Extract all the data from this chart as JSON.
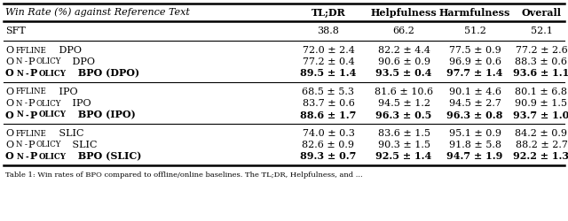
{
  "header": [
    "Win Rate (%) against Reference Text",
    "TL;DR",
    "Helpfulness",
    "Harmfulness",
    "Overall"
  ],
  "rows": [
    [
      "SFT",
      "38.8",
      "66.2",
      "51.2",
      "52.1"
    ],
    [
      "OFFLINE DPO",
      "72.0 ± 2.4",
      "82.2 ± 4.4",
      "77.5 ± 0.9",
      "77.2 ± 2.6"
    ],
    [
      "ON-POLICY DPO",
      "77.2 ± 0.4",
      "90.6 ± 0.9",
      "96.9 ± 0.6",
      "88.3 ± 0.6"
    ],
    [
      "ON-POLICY BPO (DPO)",
      "89.5 ± 1.4",
      "93.5 ± 0.4",
      "97.7 ± 1.4",
      "93.6 ± 1.1"
    ],
    [
      "OFFLINE IPO",
      "68.5 ± 5.3",
      "81.6 ± 10.6",
      "90.1 ± 4.6",
      "80.1 ± 6.8"
    ],
    [
      "ON-POLICY IPO",
      "83.7 ± 0.6",
      "94.5 ± 1.2",
      "94.5 ± 2.7",
      "90.9 ± 1.5"
    ],
    [
      "ON-POLICY BPO (IPO)",
      "88.6 ± 1.7",
      "96.3 ± 0.5",
      "96.3 ± 0.8",
      "93.7 ± 1.0"
    ],
    [
      "OFFLINE SLIC",
      "74.0 ± 0.3",
      "83.6 ± 1.5",
      "95.1 ± 0.9",
      "84.2 ± 0.9"
    ],
    [
      "ON-POLICY SLIC",
      "82.6 ± 0.9",
      "90.3 ± 1.5",
      "91.8 ± 5.8",
      "88.2 ± 2.7"
    ],
    [
      "ON-POLICY BPO (SLIC)",
      "89.3 ± 0.7",
      "92.5 ± 1.4",
      "94.7 ± 1.9",
      "92.2 ± 1.3"
    ]
  ],
  "bold_rows": [
    3,
    6,
    9
  ],
  "background_color": "#ffffff",
  "font_size": 8.0,
  "caption": "Table 1: Win rates of BPO compared to offline/online baselines. The TL;DR, Helpfulness, and ..."
}
